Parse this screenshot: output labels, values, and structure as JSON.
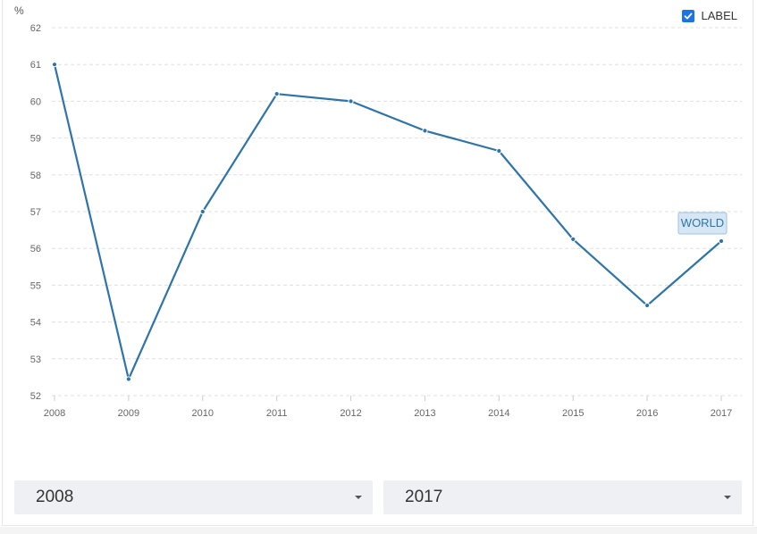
{
  "label_toggle": {
    "text": "LABEL",
    "checked": true,
    "icon": "check-icon"
  },
  "chart_data": {
    "type": "line",
    "unit_label": "%",
    "x": [
      "2008",
      "2009",
      "2010",
      "2011",
      "2012",
      "2013",
      "2014",
      "2015",
      "2016",
      "2017"
    ],
    "series": [
      {
        "name": "WORLD",
        "values": [
          61.0,
          52.45,
          57.0,
          60.2,
          60.0,
          59.2,
          58.65,
          56.25,
          54.45,
          56.2
        ],
        "color": "#2e74a8"
      }
    ],
    "yticks": [
      52,
      53,
      54,
      55,
      56,
      57,
      58,
      59,
      60,
      61,
      62
    ],
    "ylim": [
      52,
      62
    ],
    "grid": true,
    "grid_color": "#e0e0e0",
    "label_bg": "#d6e6f4"
  },
  "range": {
    "start": "2008",
    "end": "2017",
    "caret_icon": "caret-down-icon"
  }
}
